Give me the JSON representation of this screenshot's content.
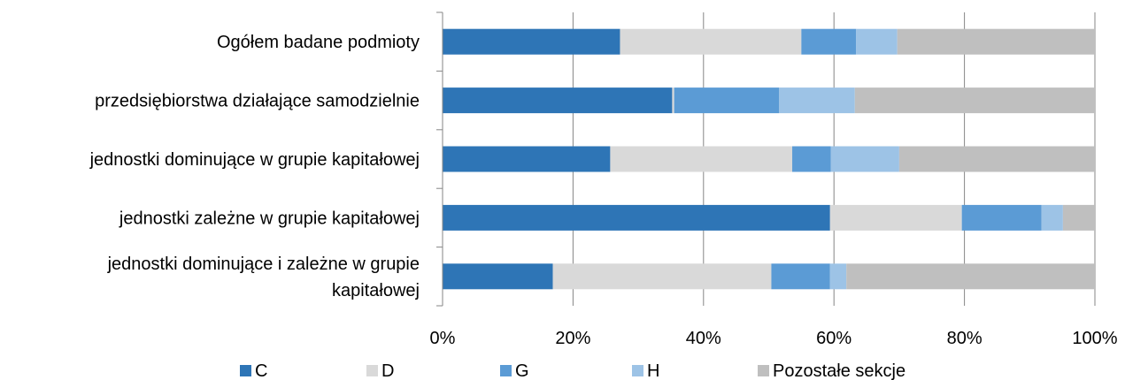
{
  "chart_data": {
    "type": "bar",
    "orientation": "horizontal",
    "stacked": true,
    "normalized_percent": true,
    "categories": [
      "Ogółem badane podmioty",
      "przedsiębiorstwa działające samodzielnie",
      "jednostki dominujące w grupie kapitałowej",
      "jednostki zależne w grupie kapitałowej",
      "jednostki dominujące i zależne w grupie kapitałowej"
    ],
    "series": [
      {
        "name": "C",
        "color": "#2E75B6",
        "values": [
          27.2,
          35.2,
          25.7,
          59.4,
          16.9
        ]
      },
      {
        "name": "D",
        "color": "#D9D9D9",
        "values": [
          27.8,
          0.3,
          27.9,
          20.2,
          33.5
        ]
      },
      {
        "name": "G",
        "color": "#5B9BD5",
        "values": [
          8.4,
          16.1,
          5.9,
          12.2,
          9.0
        ]
      },
      {
        "name": "H",
        "color": "#9DC3E6",
        "values": [
          6.3,
          11.6,
          10.5,
          3.3,
          2.5
        ]
      },
      {
        "name": "Pozostałe sekcje",
        "color": "#BFBFBF",
        "values": [
          30.3,
          36.8,
          30.0,
          4.9,
          38.1
        ]
      }
    ],
    "xticks": [
      "0%",
      "20%",
      "40%",
      "60%",
      "80%",
      "100%"
    ],
    "xlim": [
      0,
      100
    ],
    "grid": true,
    "legend_position": "bottom",
    "title": "",
    "xlabel": "",
    "ylabel": ""
  }
}
